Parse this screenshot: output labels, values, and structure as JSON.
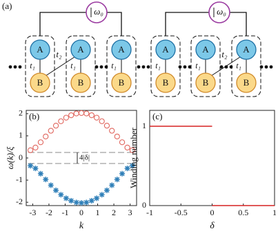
{
  "diagram": {
    "label": "(a)",
    "omega": "ω₀",
    "site_a": "A",
    "site_b": "B",
    "t1": "t₁",
    "t2": "t₂"
  },
  "chart_data": [
    {
      "type": "scatter",
      "label": "(b)",
      "ylabel": "ω(k)/ξ",
      "xlabel": "k",
      "annotation": "4|δ|",
      "x": [
        -3.14,
        -2.83,
        -2.51,
        -2.2,
        -1.88,
        -1.57,
        -1.26,
        -0.94,
        -0.63,
        -0.31,
        0,
        0.31,
        0.63,
        0.94,
        1.26,
        1.57,
        1.88,
        2.2,
        2.51,
        2.83,
        3.14
      ],
      "series": [
        {
          "color": "#e0665e",
          "marker": "circle",
          "values": [
            0.35,
            0.47,
            0.71,
            0.97,
            1.23,
            1.46,
            1.66,
            1.82,
            1.93,
            2.01,
            2.03,
            2.01,
            1.93,
            1.82,
            1.66,
            1.46,
            1.23,
            0.97,
            0.71,
            0.47,
            0.35
          ]
        },
        {
          "color": "#2f7fb8",
          "marker": "star",
          "values": [
            -0.35,
            -0.47,
            -0.71,
            -0.97,
            -1.23,
            -1.46,
            -1.66,
            -1.82,
            -1.93,
            -2.01,
            -2.03,
            -2.01,
            -1.93,
            -1.82,
            -1.66,
            -1.46,
            -1.23,
            -0.97,
            -0.71,
            -0.47,
            -0.35
          ]
        }
      ],
      "hlines": [
        0.25,
        -0.25
      ],
      "xlim": [
        -3.4,
        3.4
      ],
      "xticks": [
        -3,
        -2,
        -1,
        0,
        1,
        2,
        3
      ],
      "ylim": [
        -2.15,
        2.15
      ],
      "yticks": [
        -2,
        -1,
        0,
        1,
        2
      ]
    },
    {
      "type": "line",
      "label": "(c)",
      "ylabel": "Winding number",
      "xlabel": "δ",
      "x": [
        -1,
        0,
        0,
        0,
        1
      ],
      "series": [
        {
          "color": "#d62020",
          "values": [
            1,
            1,
            null,
            0,
            0
          ]
        }
      ],
      "xlim": [
        -1,
        1
      ],
      "xticks": [
        -1,
        -0.5,
        0,
        0.5,
        1
      ],
      "ylim": [
        0,
        1.2
      ],
      "yticks": [
        0,
        1
      ]
    }
  ]
}
